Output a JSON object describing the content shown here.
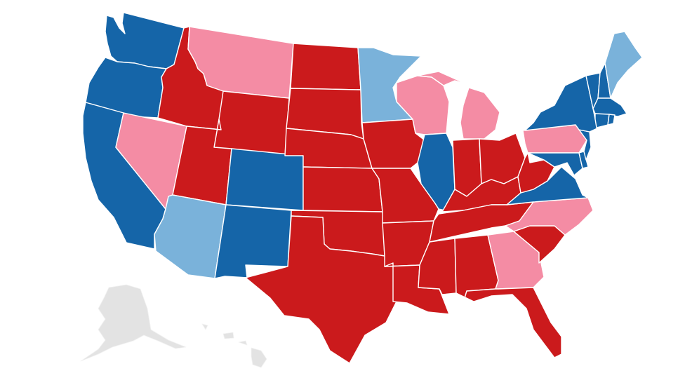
{
  "colors": {
    "solid_dem": "#1565a8",
    "lean_dem": "#7ab2da",
    "solid_rep": "#cb1a1c",
    "lean_rep": "#f48ca4",
    "no_data": "#e3e3e3",
    "border": "#ffffff"
  },
  "states": [
    {
      "name": "WA",
      "category": "solid_dem"
    },
    {
      "name": "OR",
      "category": "solid_dem"
    },
    {
      "name": "CA",
      "category": "solid_dem"
    },
    {
      "name": "NV",
      "category": "lean_rep"
    },
    {
      "name": "ID",
      "category": "solid_rep"
    },
    {
      "name": "MT",
      "category": "lean_rep"
    },
    {
      "name": "WY",
      "category": "solid_rep"
    },
    {
      "name": "UT",
      "category": "solid_rep"
    },
    {
      "name": "AZ",
      "category": "lean_dem"
    },
    {
      "name": "CO",
      "category": "solid_dem"
    },
    {
      "name": "NM",
      "category": "solid_dem"
    },
    {
      "name": "ND",
      "category": "solid_rep"
    },
    {
      "name": "SD",
      "category": "solid_rep"
    },
    {
      "name": "NE",
      "category": "solid_rep"
    },
    {
      "name": "KS",
      "category": "solid_rep"
    },
    {
      "name": "OK",
      "category": "solid_rep"
    },
    {
      "name": "TX",
      "category": "solid_rep"
    },
    {
      "name": "MN",
      "category": "lean_dem"
    },
    {
      "name": "IA",
      "category": "solid_rep"
    },
    {
      "name": "MO",
      "category": "solid_rep"
    },
    {
      "name": "AR",
      "category": "solid_rep"
    },
    {
      "name": "LA",
      "category": "solid_rep"
    },
    {
      "name": "WI",
      "category": "lean_rep"
    },
    {
      "name": "MI",
      "category": "lean_rep"
    },
    {
      "name": "IL",
      "category": "solid_dem"
    },
    {
      "name": "IN",
      "category": "solid_rep"
    },
    {
      "name": "OH",
      "category": "solid_rep"
    },
    {
      "name": "KY",
      "category": "solid_rep"
    },
    {
      "name": "TN",
      "category": "solid_rep"
    },
    {
      "name": "MS",
      "category": "solid_rep"
    },
    {
      "name": "AL",
      "category": "solid_rep"
    },
    {
      "name": "GA",
      "category": "lean_rep"
    },
    {
      "name": "FL",
      "category": "solid_rep"
    },
    {
      "name": "SC",
      "category": "solid_rep"
    },
    {
      "name": "NC",
      "category": "lean_rep"
    },
    {
      "name": "VA",
      "category": "solid_dem"
    },
    {
      "name": "WV",
      "category": "solid_rep"
    },
    {
      "name": "PA",
      "category": "lean_rep"
    },
    {
      "name": "NY",
      "category": "solid_dem"
    },
    {
      "name": "NJ",
      "category": "solid_dem"
    },
    {
      "name": "DE",
      "category": "solid_dem"
    },
    {
      "name": "MD",
      "category": "solid_dem"
    },
    {
      "name": "CT",
      "category": "solid_dem"
    },
    {
      "name": "RI",
      "category": "solid_dem"
    },
    {
      "name": "MA",
      "category": "solid_dem"
    },
    {
      "name": "VT",
      "category": "solid_dem"
    },
    {
      "name": "NH",
      "category": "solid_dem"
    },
    {
      "name": "ME",
      "category": "lean_dem"
    },
    {
      "name": "AK",
      "category": "no_data"
    },
    {
      "name": "HI",
      "category": "no_data"
    }
  ]
}
